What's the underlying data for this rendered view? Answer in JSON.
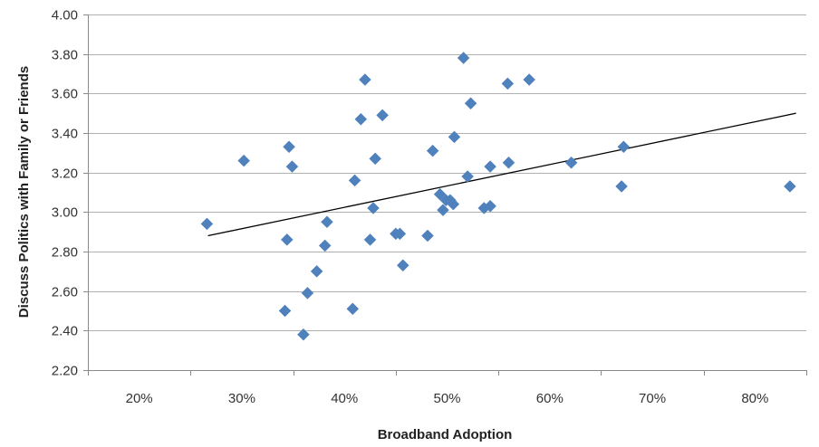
{
  "chart_data": {
    "type": "scatter",
    "xlabel": "Broadband Adoption",
    "ylabel": "Discuss Politics with Family or Friends",
    "xlim": [
      0.15,
      0.85
    ],
    "ylim": [
      2.2,
      4.0
    ],
    "x_ticks": [
      0.2,
      0.3,
      0.4,
      0.5,
      0.6,
      0.7,
      0.8
    ],
    "x_tick_labels": [
      "20%",
      "30%",
      "40%",
      "50%",
      "60%",
      "70%",
      "80%"
    ],
    "y_ticks": [
      2.2,
      2.4,
      2.6,
      2.8,
      3.0,
      3.2,
      3.4,
      3.6,
      3.8,
      4.0
    ],
    "y_tick_labels": [
      "2.20",
      "2.40",
      "2.60",
      "2.80",
      "3.00",
      "3.20",
      "3.40",
      "3.60",
      "3.80",
      "4.00"
    ],
    "grid": "horizontal",
    "legend": "none",
    "marker": "diamond",
    "marker_color": "#4f81bd",
    "trendline": {
      "type": "linear",
      "x": [
        0.267,
        0.84
      ],
      "y": [
        2.88,
        3.5
      ],
      "color": "#000000"
    },
    "series": [
      {
        "points": [
          [
            0.266,
            2.94
          ],
          [
            0.302,
            3.26
          ],
          [
            0.342,
            2.5
          ],
          [
            0.344,
            2.86
          ],
          [
            0.346,
            3.33
          ],
          [
            0.349,
            3.23
          ],
          [
            0.36,
            2.38
          ],
          [
            0.364,
            2.59
          ],
          [
            0.373,
            2.7
          ],
          [
            0.381,
            2.83
          ],
          [
            0.383,
            2.95
          ],
          [
            0.408,
            2.51
          ],
          [
            0.41,
            3.16
          ],
          [
            0.416,
            3.47
          ],
          [
            0.42,
            3.67
          ],
          [
            0.425,
            2.86
          ],
          [
            0.428,
            3.02
          ],
          [
            0.43,
            3.27
          ],
          [
            0.437,
            3.49
          ],
          [
            0.45,
            2.89
          ],
          [
            0.454,
            2.89
          ],
          [
            0.457,
            2.73
          ],
          [
            0.481,
            2.88
          ],
          [
            0.486,
            3.31
          ],
          [
            0.493,
            3.09
          ],
          [
            0.496,
            3.01
          ],
          [
            0.499,
            3.06
          ],
          [
            0.503,
            3.06
          ],
          [
            0.506,
            3.04
          ],
          [
            0.507,
            3.38
          ],
          [
            0.516,
            3.78
          ],
          [
            0.52,
            3.18
          ],
          [
            0.523,
            3.55
          ],
          [
            0.536,
            3.02
          ],
          [
            0.542,
            3.03
          ],
          [
            0.542,
            3.23
          ],
          [
            0.559,
            3.65
          ],
          [
            0.56,
            3.25
          ],
          [
            0.58,
            3.67
          ],
          [
            0.621,
            3.25
          ],
          [
            0.67,
            3.13
          ],
          [
            0.672,
            3.33
          ],
          [
            0.834,
            3.13
          ]
        ]
      }
    ]
  }
}
